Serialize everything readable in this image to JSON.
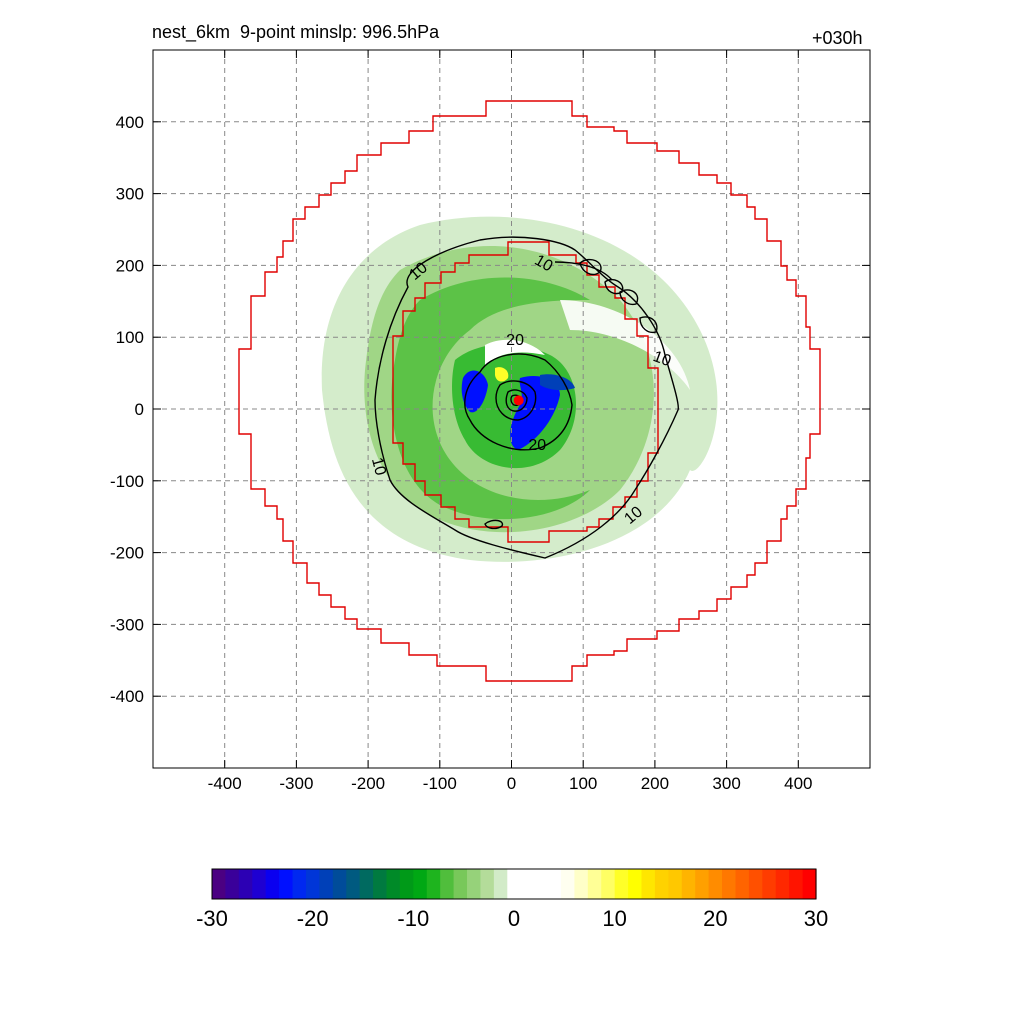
{
  "title_left": "nest_6km  9-point minslp: 996.5hPa",
  "title_right": "+030h",
  "chart_data": {
    "type": "heatmap",
    "xlim": [
      -500,
      500
    ],
    "ylim": [
      -500,
      500
    ],
    "x_ticks": [
      -400,
      -300,
      -200,
      -100,
      0,
      100,
      200,
      300,
      400
    ],
    "y_ticks": [
      400,
      300,
      200,
      100,
      0,
      -100,
      -200,
      -300,
      -400
    ],
    "x_tick_labels": [
      "-400",
      "-300",
      "-200",
      "-100",
      "0",
      "100",
      "200",
      "300",
      "400"
    ],
    "y_tick_labels": [
      "400",
      "300",
      "200",
      "100",
      "0",
      "-100",
      "-200",
      "-300",
      "-400"
    ],
    "grid": true,
    "colorbar": {
      "range": [
        -30,
        30
      ],
      "ticks": [
        -30,
        -20,
        -10,
        0,
        10,
        20,
        30
      ],
      "tick_labels": [
        "-30",
        "-20",
        "-10",
        "0",
        "10",
        "20",
        "30"
      ],
      "colors": [
        "#4b0082",
        "#3a009a",
        "#2c00b4",
        "#1e00d2",
        "#0a00f0",
        "#0010ff",
        "#0028f0",
        "#0036d8",
        "#0040b8",
        "#004c9a",
        "#005a80",
        "#006a60",
        "#007a40",
        "#008a28",
        "#009a18",
        "#00a814",
        "#1eb41e",
        "#50be3c",
        "#78c85a",
        "#96d27a",
        "#b4dc9a",
        "#d2ebc8",
        "#ffffff",
        "#ffffff",
        "#ffffff",
        "#ffffff",
        "#fffff0",
        "#ffffc8",
        "#ffff96",
        "#ffff64",
        "#ffff28",
        "#ffff00",
        "#ffe600",
        "#ffd200",
        "#ffc800",
        "#ffb400",
        "#ffa000",
        "#ff8c00",
        "#ff7800",
        "#ff6400",
        "#ff5000",
        "#ff3c00",
        "#ff2800",
        "#ff1400",
        "#ff0000"
      ]
    },
    "contour_labels": [
      {
        "text": "10",
        "x": -130,
        "y": 192,
        "angle": -40
      },
      {
        "text": "10",
        "x": 45,
        "y": 203,
        "angle": 30
      },
      {
        "text": "10",
        "x": 210,
        "y": 70,
        "angle": 20
      },
      {
        "text": "10",
        "x": 170,
        "y": -148,
        "angle": -40
      },
      {
        "text": "10",
        "x": -185,
        "y": -80,
        "angle": 75
      },
      {
        "text": "20",
        "x": 5,
        "y": 96,
        "angle": 0
      },
      {
        "text": "20",
        "x": 36,
        "y": -50,
        "angle": 0
      }
    ],
    "center_marker": {
      "x": 10,
      "y": 12
    }
  }
}
